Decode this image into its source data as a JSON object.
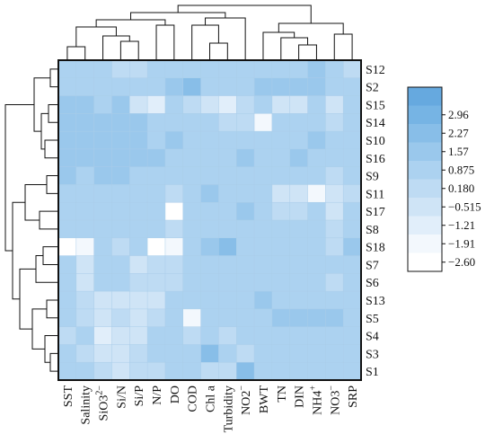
{
  "chart_data": {
    "type": "heatmap",
    "title": "",
    "xlabel": "",
    "ylabel": "",
    "x_categories": [
      "SST",
      "Salinity",
      "SiO3^2−",
      "Si/N",
      "Si/P",
      "N/P",
      "DO",
      "COD",
      "Chl a",
      "Turbidity",
      "NO2^−",
      "BWT",
      "TN",
      "DIN",
      "NH4^+",
      "NO3^−",
      "SRP"
    ],
    "y_categories": [
      "S12",
      "S2",
      "S15",
      "S14",
      "S10",
      "S16",
      "S9",
      "S11",
      "S17",
      "S8",
      "S18",
      "S7",
      "S6",
      "S13",
      "S5",
      "S4",
      "S3",
      "S1"
    ],
    "values": [
      [
        0.4,
        0.3,
        0.4,
        0.1,
        0.1,
        0.3,
        0.4,
        0.6,
        0.5,
        0.4,
        0.5,
        0.3,
        0.5,
        0.7,
        0.9,
        0.3,
        -0.3
      ],
      [
        0.7,
        0.6,
        0.4,
        0.3,
        0.5,
        0.3,
        0.9,
        1.6,
        0.6,
        0.5,
        0.7,
        0.9,
        0.8,
        0.9,
        0.9,
        0.6,
        0.2
      ],
      [
        1.1,
        1.0,
        0.7,
        0.8,
        -0.5,
        -1.3,
        0.3,
        0.1,
        -0.9,
        -1.2,
        -0.4,
        0.4,
        -0.9,
        -0.8,
        0.3,
        -0.5,
        0.5
      ],
      [
        1.3,
        1.2,
        1.0,
        1.0,
        0.9,
        0.4,
        0.4,
        0.4,
        0.2,
        0.1,
        0.1,
        -2.3,
        0.3,
        0.4,
        0.6,
        -0.2,
        0.7
      ],
      [
        1.0,
        0.9,
        0.9,
        1.0,
        0.8,
        0.7,
        0.8,
        0.7,
        0.6,
        0.6,
        0.5,
        0.7,
        0.4,
        0.6,
        0.8,
        0.4,
        0.3
      ],
      [
        0.9,
        0.8,
        0.9,
        0.8,
        0.8,
        1.1,
        0.5,
        0.7,
        0.5,
        0.6,
        0.9,
        0.7,
        0.4,
        0.8,
        0.6,
        0.4,
        0.5
      ],
      [
        0.8,
        0.7,
        0.9,
        0.8,
        0.6,
        0.5,
        0.5,
        0.6,
        0.4,
        0.5,
        0.5,
        0.6,
        0.2,
        0.4,
        0.4,
        0.1,
        0.5
      ],
      [
        0.6,
        0.6,
        0.4,
        0.5,
        0.3,
        0.2,
        0.1,
        0.3,
        0.9,
        0.5,
        0.3,
        0.5,
        -0.9,
        -1.0,
        -2.1,
        -0.5,
        0.1
      ],
      [
        0.6,
        0.5,
        0.6,
        0.4,
        0.3,
        0.5,
        -2.5,
        0.3,
        0.2,
        0.2,
        1.3,
        0.4,
        -0.4,
        -0.3,
        0.2,
        -0.9,
        0.3
      ],
      [
        0.5,
        0.4,
        0.5,
        0.4,
        0.3,
        0.2,
        0.1,
        0.5,
        0.4,
        0.3,
        0.7,
        0.4,
        0.3,
        0.4,
        0.5,
        0.1,
        0.2
      ],
      [
        -2.4,
        -2.2,
        0.3,
        0.1,
        0.6,
        -2.5,
        -2.3,
        0.7,
        0.8,
        1.6,
        0.4,
        0.7,
        0.5,
        0.3,
        0.5,
        -0.2,
        1.2
      ],
      [
        0.3,
        -0.9,
        0.3,
        0.5,
        -0.5,
        -0.3,
        0.1,
        0.6,
        0.4,
        0.6,
        0.5,
        0.6,
        0.5,
        0.4,
        0.3,
        0.3,
        0.7
      ],
      [
        0.2,
        -0.6,
        0.2,
        0.4,
        -0.3,
        -0.2,
        0.1,
        0.5,
        0.6,
        0.4,
        0.5,
        0.5,
        0.3,
        0.3,
        0.4,
        0.1,
        0.3
      ],
      [
        0.4,
        -0.3,
        -0.8,
        -0.7,
        -0.9,
        -0.5,
        0.2,
        0.3,
        0.6,
        0.4,
        0.4,
        0.8,
        0.5,
        0.4,
        0.6,
        0.3,
        0.2
      ],
      [
        0.2,
        0.1,
        -0.6,
        -0.4,
        -0.5,
        -0.3,
        0.2,
        -2.2,
        0.4,
        0.2,
        0.3,
        0.5,
        1.0,
        0.9,
        0.8,
        1.1,
        0.3
      ],
      [
        0.1,
        0.2,
        -1.3,
        -0.6,
        -0.7,
        0.2,
        0.7,
        0.1,
        0.2,
        0.1,
        0.2,
        0.4,
        0.3,
        0.3,
        0.4,
        0.7,
        0.4
      ],
      [
        0.2,
        -0.4,
        -0.8,
        -0.6,
        -0.2,
        0.3,
        0.3,
        0.5,
        1.8,
        0.2,
        0.1,
        0.3,
        0.3,
        0.2,
        0.4,
        0.3,
        0.2
      ],
      [
        0.3,
        0.2,
        -0.3,
        -0.5,
        0.0,
        0.1,
        0.4,
        0.4,
        -0.3,
        -0.4,
        1.5,
        0.3,
        0.2,
        0.3,
        0.4,
        0.2,
        0.3
      ]
    ],
    "colorbar": {
      "ticks": [
        "2.96",
        "2.27",
        "1.57",
        "0.875",
        "0.180",
        "−0.515",
        "−1.21",
        "−1.91",
        "−2.60"
      ],
      "min": -2.95,
      "max": 3.3
    },
    "dendrogram_top": true,
    "dendrogram_left": true,
    "grid": true,
    "legend_position": "right"
  },
  "colors": {
    "cell_scale": [
      "#ffffff",
      "#f3f8fd",
      "#e1eefa",
      "#cfe4f6",
      "#bedbf3",
      "#acd2f0",
      "#9ac8ec",
      "#88bee8",
      "#76b4e4",
      "#66a9df"
    ]
  }
}
